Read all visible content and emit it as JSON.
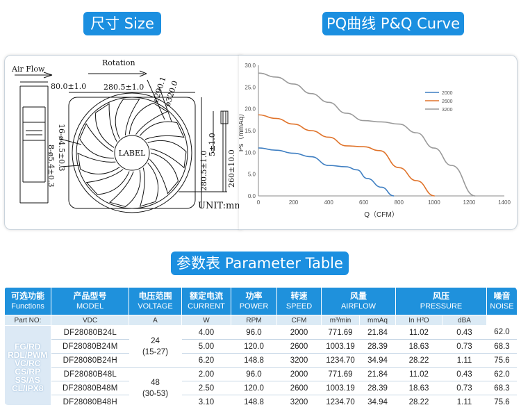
{
  "headers": {
    "size": "尺寸 Size",
    "pq": "PQ曲线 P&Q Curve",
    "param": "参数表 Parameter Table"
  },
  "drawing": {
    "air_flow": "Air Flow",
    "rotation": "Rotation",
    "dim_80": "80.0±1.0",
    "dim_280_w": "280.5±1.0",
    "dim_290": "ø290.1",
    "dim_320": "ø320.0",
    "dim_16": "16-ø4.5±0.3",
    "dim_8": "8-ø5.4±0.3",
    "dim_280_h": "280.5±1.0",
    "dim_5": "5±1.0",
    "dim_260": "260±10.0",
    "label": "LABEL",
    "unit": "UNIT:mm"
  },
  "chart_data": {
    "type": "line",
    "xlabel": "Q（CFM）",
    "ylabel": "Ps（mmAq）",
    "xlim": [
      0,
      1400
    ],
    "ylim": [
      0,
      30
    ],
    "x_ticks": [
      "0",
      "200",
      "400",
      "600",
      "800",
      "1000",
      "1200",
      "1400"
    ],
    "y_ticks": [
      "0.0",
      "5.0",
      "10.0",
      "15.0",
      "20.0",
      "25.0",
      "30.0"
    ],
    "legend_position": "top-right",
    "series": [
      {
        "name": "2000",
        "color": "#3f7fc2",
        "points": [
          [
            0,
            11.02
          ],
          [
            100,
            10.5
          ],
          [
            200,
            9.8
          ],
          [
            300,
            9.0
          ],
          [
            400,
            7.0
          ],
          [
            500,
            6.7
          ],
          [
            560,
            6.0
          ],
          [
            620,
            4.0
          ],
          [
            700,
            2.0
          ],
          [
            771.69,
            0
          ]
        ]
      },
      {
        "name": "2600",
        "color": "#e0732a",
        "points": [
          [
            0,
            18.63
          ],
          [
            100,
            17.8
          ],
          [
            200,
            16.5
          ],
          [
            300,
            15.0
          ],
          [
            400,
            13.5
          ],
          [
            500,
            11.5
          ],
          [
            600,
            11.3
          ],
          [
            690,
            10.4
          ],
          [
            800,
            6.5
          ],
          [
            900,
            3.5
          ],
          [
            1003.19,
            0
          ]
        ]
      },
      {
        "name": "3200",
        "color": "#9a9a9a",
        "points": [
          [
            0,
            28.22
          ],
          [
            100,
            27.3
          ],
          [
            200,
            25.7
          ],
          [
            300,
            23.5
          ],
          [
            400,
            21.5
          ],
          [
            500,
            19.0
          ],
          [
            600,
            17.3
          ],
          [
            700,
            17.0
          ],
          [
            800,
            16.5
          ],
          [
            900,
            14.5
          ],
          [
            1000,
            11.0
          ],
          [
            1100,
            7.0
          ],
          [
            1234.7,
            0
          ]
        ]
      }
    ]
  },
  "table": {
    "headers": [
      {
        "cn": "可选功能",
        "en": "Functions"
      },
      {
        "cn": "产品型号",
        "en": "MODEL"
      },
      {
        "cn": "电压范围",
        "en": "VOLTAGE"
      },
      {
        "cn": "额定电流",
        "en": "CURRENT"
      },
      {
        "cn": "功率",
        "en": "POWER"
      },
      {
        "cn": "转速",
        "en": "SPEED"
      },
      {
        "cn": "风量",
        "en": "AIRFLOW"
      },
      {
        "cn": "风压",
        "en": "PRESSURE"
      },
      {
        "cn": "噪音",
        "en": "NOISE"
      }
    ],
    "units": [
      "Part NO:",
      "VDC",
      "A",
      "W",
      "RPM",
      "CFM",
      "m³/min",
      "mmAq",
      "In H²O",
      "dBA"
    ],
    "functions": [
      "FG/RD",
      "RDL/PWM",
      "VC/RC",
      "CS/RP",
      "SS/AS",
      "CL/IPX8"
    ],
    "voltage_groups": [
      {
        "v": "24",
        "range": "(15-27)"
      },
      {
        "v": "48",
        "range": "(30-53)"
      }
    ],
    "rows": [
      {
        "model": "DF28080B24L",
        "a": "4.00",
        "w": "96.0",
        "rpm": "2000",
        "cfm": "771.69",
        "m3": "21.84",
        "mmaq": "11.02",
        "inh2o": "0.43",
        "dba": "62.0"
      },
      {
        "model": "DF28080B24M",
        "a": "5.00",
        "w": "120.0",
        "rpm": "2600",
        "cfm": "1003.19",
        "m3": "28.39",
        "mmaq": "18.63",
        "inh2o": "0.73",
        "dba": "68.3"
      },
      {
        "model": "DF28080B24H",
        "a": "6.20",
        "w": "148.8",
        "rpm": "3200",
        "cfm": "1234.70",
        "m3": "34.94",
        "mmaq": "28.22",
        "inh2o": "1.11",
        "dba": "75.6"
      },
      {
        "model": "DF28080B48L",
        "a": "2.00",
        "w": "96.0",
        "rpm": "2000",
        "cfm": "771.69",
        "m3": "21.84",
        "mmaq": "11.02",
        "inh2o": "0.43",
        "dba": "62.0"
      },
      {
        "model": "DF28080B48M",
        "a": "2.50",
        "w": "120.0",
        "rpm": "2600",
        "cfm": "1003.19",
        "m3": "28.39",
        "mmaq": "18.63",
        "inh2o": "0.73",
        "dba": "68.3"
      },
      {
        "model": "DF28080B48H",
        "a": "3.10",
        "w": "148.8",
        "rpm": "3200",
        "cfm": "1234.70",
        "m3": "34.94",
        "mmaq": "28.22",
        "inh2o": "1.11",
        "dba": "75.6"
      }
    ]
  }
}
